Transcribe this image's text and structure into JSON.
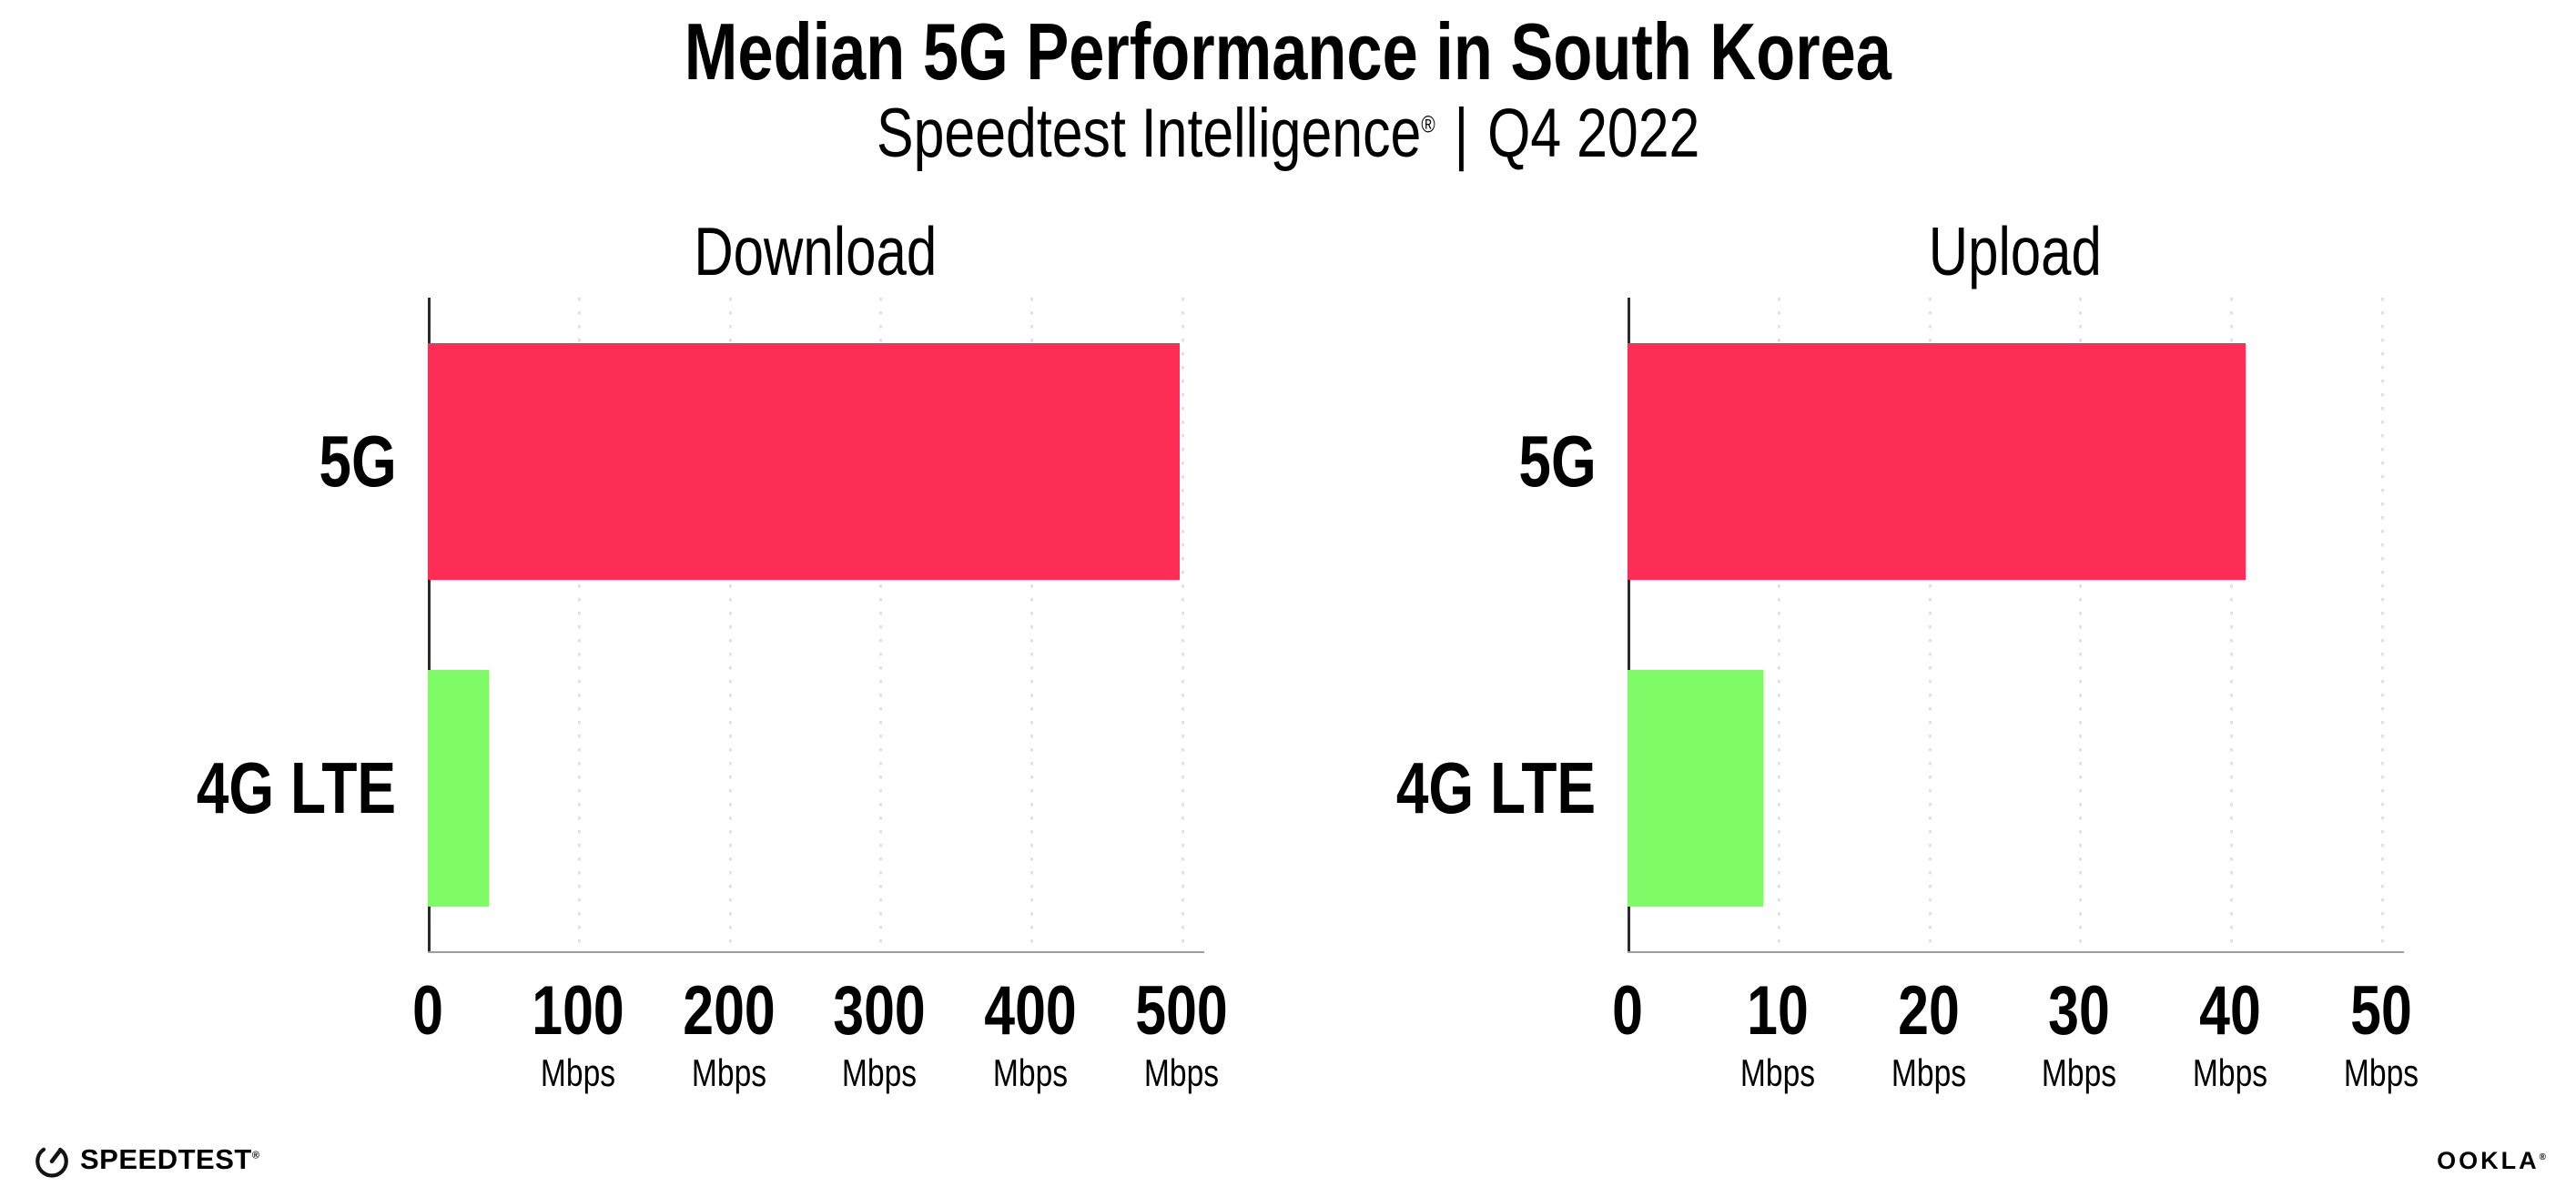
{
  "page": {
    "title": "Median 5G Performance in South Korea",
    "subtitle_brand": "Speedtest Intelligence",
    "subtitle_reg_mark": "®",
    "subtitle_separator": "|",
    "subtitle_period": "Q4 2022"
  },
  "colors": {
    "bar_5g": "#FD2D55",
    "bar_4g_lte": "#7FFB67",
    "gridline": "#E2E1EB",
    "y_axis": "#2B2B2B",
    "x_axis": "#9C9CA1",
    "text": "#000000",
    "background": "#FFFFFF"
  },
  "chart_data": [
    {
      "type": "bar",
      "orientation": "horizontal",
      "title": "Download",
      "categories": [
        "5G",
        "4G LTE"
      ],
      "values": [
        499,
        41
      ],
      "unit": "Mbps",
      "xlim": [
        0,
        500
      ],
      "xticks": [
        0,
        100,
        200,
        300,
        400,
        500
      ],
      "tick_unit_label": "Mbps",
      "bar_colors": [
        "#FD2D55",
        "#7FFB67"
      ],
      "grid": "dotted-vertical",
      "legend": "none"
    },
    {
      "type": "bar",
      "orientation": "horizontal",
      "title": "Upload",
      "categories": [
        "5G",
        "4G LTE"
      ],
      "values": [
        41,
        9
      ],
      "unit": "Mbps",
      "xlim": [
        0,
        50
      ],
      "xticks": [
        0,
        10,
        20,
        30,
        40,
        50
      ],
      "tick_unit_label": "Mbps",
      "bar_colors": [
        "#FD2D55",
        "#7FFB67"
      ],
      "grid": "dotted-vertical",
      "legend": "none"
    }
  ],
  "footer": {
    "speedtest_logo_text": "SPEEDTEST",
    "speedtest_trademark": "®",
    "ookla_logo_text": "OOKLA",
    "ookla_trademark": "®"
  }
}
